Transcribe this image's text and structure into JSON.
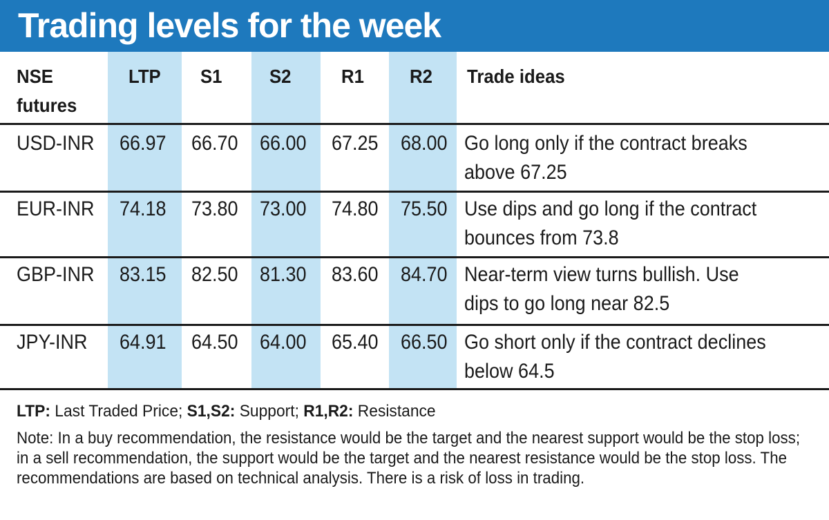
{
  "title": "Trading levels for the week",
  "columns": {
    "nse_line1": "NSE",
    "nse_line2": "futures",
    "ltp": "LTP",
    "s1": "S1",
    "s2": "S2",
    "r1": "R1",
    "r2": "R2",
    "ideas": "Trade ideas"
  },
  "rows": [
    {
      "pair": "USD-INR",
      "ltp": "66.97",
      "s1": "66.70",
      "s2": "66.00",
      "r1": "67.25",
      "r2": "68.00",
      "idea": "Go long only if the contract breaks above 67.25"
    },
    {
      "pair": "EUR-INR",
      "ltp": "74.18",
      "s1": "73.80",
      "s2": "73.00",
      "r1": "74.80",
      "r2": "75.50",
      "idea": "Use dips and go long if the contract bounces from 73.8"
    },
    {
      "pair": "GBP-INR",
      "ltp": "83.15",
      "s1": "82.50",
      "s2": "81.30",
      "r1": "83.60",
      "r2": "84.70",
      "idea": "Near-term view turns bullish. Use dips to go long near 82.5"
    },
    {
      "pair": "JPY-INR",
      "ltp": "64.91",
      "s1": "64.50",
      "s2": "64.00",
      "r1": "65.40",
      "r2": "66.50",
      "idea": "Go short only if the contract declines below 64.5"
    }
  ],
  "legend": {
    "ltp_key": "LTP:",
    "ltp_text": " Last Traded Price; ",
    "s_key": "S1,S2:",
    "s_text": " Support; ",
    "r_key": "R1,R2:",
    "r_text": " Resistance"
  },
  "note": "Note: In a buy recommendation, the resistance would be the target and the nearest support would be the stop loss; in a sell recommendation, the support would be the target and the nearest resistance would be the stop loss. The recommendations are based on technical analysis. There is a risk of loss in trading.",
  "colors": {
    "title_bar": "#1e79bd",
    "column_highlight": "#c3e3f4"
  }
}
